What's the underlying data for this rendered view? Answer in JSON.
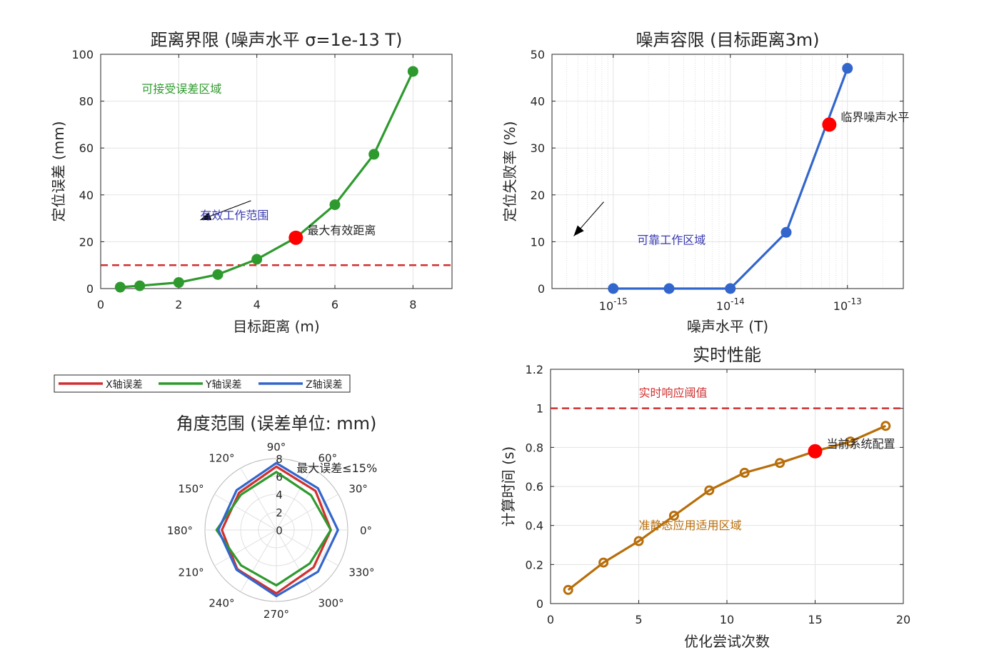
{
  "chart_data": [
    {
      "id": "distance",
      "type": "line",
      "title": "距离界限 (噪声水平 σ=1e-13 T)",
      "xlabel": "目标距离 (m)",
      "ylabel": "定位误差 (mm)",
      "xlim": [
        0,
        9
      ],
      "ylim": [
        0,
        100
      ],
      "xticks": [
        0,
        2,
        4,
        6,
        8
      ],
      "yticks": [
        0,
        20,
        40,
        60,
        80,
        100
      ],
      "grid": true,
      "series": [
        {
          "x": [
            0.5,
            1,
            2,
            3,
            4,
            5,
            6,
            7,
            8
          ],
          "y": [
            0.6,
            1.2,
            2.6,
            6,
            12.5,
            21.7,
            35.8,
            57.3,
            92.7
          ],
          "color": "#2e9a2e"
        }
      ],
      "threshold": {
        "y": 10,
        "color": "#d03030"
      },
      "highlight": {
        "x": 5,
        "y": 21.7,
        "color": "#ff0000",
        "label": "最大有效距离"
      },
      "annotations": [
        {
          "text": "可接受误差区域",
          "x": 1.05,
          "y": 83.5,
          "color": "#2e9a2e"
        },
        {
          "text": "有效工作范围",
          "x": 2.55,
          "y": 29.5,
          "color": "#3a3ab0"
        }
      ],
      "arrow": {
        "from": [
          3.85,
          37.5
        ],
        "to": [
          2.55,
          29.3
        ],
        "color": "#000000"
      }
    },
    {
      "id": "noise",
      "type": "line",
      "title": "噪声容限 (目标距离3m)",
      "xlabel": "噪声水平 (T)",
      "ylabel": "定位失败率 (%)",
      "xscale": "log",
      "xlim": [
        3e-16,
        3e-13
      ],
      "ylim": [
        0,
        50
      ],
      "xticks": [
        1e-15,
        1e-14,
        1e-13
      ],
      "xticklabels": [
        [
          "10",
          "-15"
        ],
        [
          "10",
          "-14"
        ],
        [
          "10",
          "-13"
        ]
      ],
      "yticks": [
        0,
        10,
        20,
        30,
        40,
        50
      ],
      "grid": true,
      "series": [
        {
          "x": [
            1e-15,
            3e-15,
            1e-14,
            3e-14,
            1e-13
          ],
          "y": [
            0,
            0,
            0,
            12,
            47
          ],
          "color": "#3366cc"
        }
      ],
      "highlight": {
        "x": 7e-14,
        "y": 35,
        "color": "#ff0000",
        "label": "临界噪声水平"
      },
      "annotations": [
        {
          "text": "可靠工作区域",
          "x": 1.6e-15,
          "y": 9.5,
          "color": "#3a3ab0"
        }
      ],
      "arrow": {
        "from": [
          8.3e-16,
          18.5
        ],
        "to": [
          4.6e-16,
          11.2
        ],
        "color": "#000000"
      }
    },
    {
      "id": "angular",
      "type": "polar",
      "title": "角度范围 (误差单位: mm)",
      "rlim": [
        0,
        8
      ],
      "rticks": [
        0,
        2,
        4,
        6,
        8
      ],
      "thetaticks": [
        0,
        30,
        60,
        90,
        120,
        150,
        180,
        210,
        240,
        270,
        300,
        330
      ],
      "theta": [
        0,
        45,
        90,
        135,
        180,
        225,
        270,
        315
      ],
      "series": [
        {
          "name": "X轴误差",
          "r": [
            6.1,
            6.2,
            7.1,
            5.9,
            6.1,
            6.2,
            7.1,
            5.9
          ],
          "color": "#d03030"
        },
        {
          "name": "Y轴误差",
          "r": [
            6.1,
            5.5,
            6.5,
            5.6,
            6.7,
            5.6,
            6.2,
            5.3
          ],
          "color": "#2e9a2e"
        },
        {
          "name": "Z轴误差",
          "r": [
            6.9,
            6.6,
            7.5,
            6.3,
            6.5,
            6.3,
            7.4,
            6.6
          ],
          "color": "#3366cc"
        }
      ],
      "annotation": {
        "text": "最大误差≤15%",
        "theta": 72,
        "r": 7.3,
        "color": "#262626"
      }
    },
    {
      "id": "realtime",
      "type": "line",
      "title": "实时性能",
      "xlabel": "优化尝试次数",
      "ylabel": "计算时间 (s)",
      "xlim": [
        0,
        20
      ],
      "ylim": [
        0,
        1.2
      ],
      "xticks": [
        0,
        5,
        10,
        15,
        20
      ],
      "yticks": [
        0,
        0.2,
        0.4,
        0.6,
        0.8,
        1,
        1.2
      ],
      "grid": true,
      "series": [
        {
          "x": [
            1,
            3,
            5,
            7,
            9,
            11,
            13,
            15,
            17,
            19
          ],
          "y": [
            0.07,
            0.21,
            0.32,
            0.45,
            0.58,
            0.67,
            0.72,
            0.78,
            0.83,
            0.91
          ],
          "color": "#b86e0a"
        }
      ],
      "threshold": {
        "y": 1,
        "color": "#d03030"
      },
      "highlight": {
        "x": 15,
        "y": 0.78,
        "color": "#ff0000",
        "label": "当前系统配置"
      },
      "annotations": [
        {
          "text": "实时响应阈值",
          "x": 5,
          "y": 1.06,
          "color": "#d03030"
        },
        {
          "text": "准静态应用适用区域",
          "x": 5,
          "y": 0.38,
          "color": "#b86e0a"
        }
      ]
    }
  ]
}
